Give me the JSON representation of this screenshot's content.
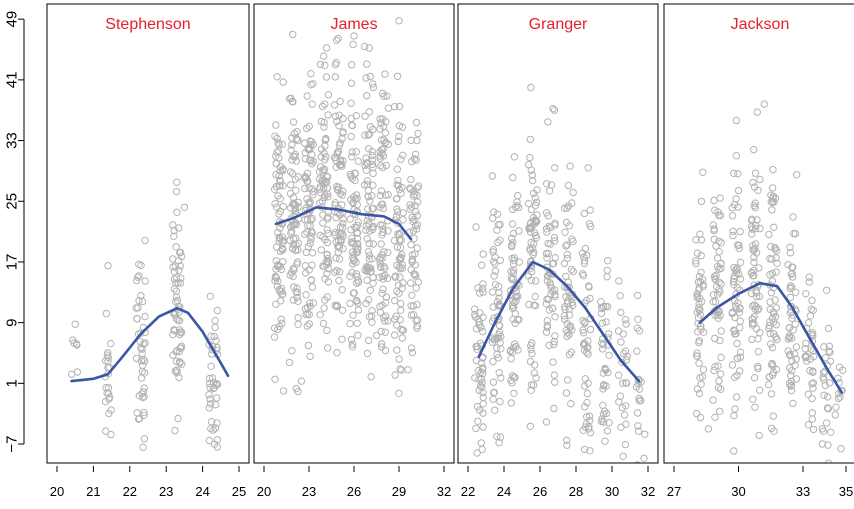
{
  "chart_data": {
    "type": "scatter",
    "y_ticks": [
      -7,
      1,
      9,
      17,
      25,
      33,
      41,
      49
    ],
    "ylim": [
      -9.5,
      51
    ],
    "colors": {
      "points": "#b3b3b3",
      "smooth": "#3a56a5",
      "title": "#e8202a",
      "frame": "#000000"
    },
    "panels": [
      {
        "title": "Stephenson",
        "xlim": [
          20,
          25
        ],
        "x_ticks": [
          20,
          21,
          22,
          23,
          24,
          25
        ],
        "x_tick_labels": [
          "20",
          "21",
          "22",
          "23",
          "24",
          "25"
        ],
        "clusters": [
          {
            "x": 20.5,
            "n": 6,
            "mean": 3,
            "spread": 3
          },
          {
            "x": 21.4,
            "n": 22,
            "mean": 1,
            "spread": 4
          },
          {
            "x": 22.3,
            "n": 45,
            "mean": 6,
            "spread": 6
          },
          {
            "x": 23.3,
            "n": 65,
            "mean": 11,
            "spread": 7
          },
          {
            "x": 24.3,
            "n": 40,
            "mean": 3,
            "spread": 4.5
          }
        ],
        "extra_points": [
          [
            20.5,
            8.8
          ],
          [
            21.4,
            16.5
          ],
          [
            22.4,
            -6.3
          ],
          [
            23.5,
            24.2
          ]
        ],
        "smooth": [
          [
            20.4,
            1.3
          ],
          [
            21.0,
            1.6
          ],
          [
            21.4,
            2.2
          ],
          [
            21.8,
            4.5
          ],
          [
            22.3,
            7.5
          ],
          [
            22.8,
            9.8
          ],
          [
            23.3,
            10.9
          ],
          [
            23.6,
            10.3
          ],
          [
            24.0,
            7.8
          ],
          [
            24.4,
            4.5
          ],
          [
            24.7,
            2.0
          ]
        ]
      },
      {
        "title": "James",
        "xlim": [
          20,
          32
        ],
        "x_ticks": [
          20,
          23,
          26,
          29,
          32
        ],
        "x_tick_labels": [
          "20",
          "23",
          "26",
          "29",
          "32"
        ],
        "clusters": [
          {
            "x": 21,
            "n": 80,
            "mean": 22,
            "spread": 9
          },
          {
            "x": 22,
            "n": 80,
            "mean": 23,
            "spread": 9
          },
          {
            "x": 23,
            "n": 80,
            "mean": 24,
            "spread": 9
          },
          {
            "x": 24,
            "n": 80,
            "mean": 24,
            "spread": 9
          },
          {
            "x": 25,
            "n": 80,
            "mean": 24,
            "spread": 9
          },
          {
            "x": 26,
            "n": 80,
            "mean": 23,
            "spread": 9
          },
          {
            "x": 27,
            "n": 80,
            "mean": 23,
            "spread": 9
          },
          {
            "x": 28,
            "n": 75,
            "mean": 23,
            "spread": 9
          },
          {
            "x": 29,
            "n": 70,
            "mean": 21,
            "spread": 9
          },
          {
            "x": 30,
            "n": 60,
            "mean": 20,
            "spread": 9
          }
        ],
        "extra_points": [
          [
            26.0,
            46.8
          ],
          [
            29.0,
            48.8
          ],
          [
            21.3,
            0.0
          ],
          [
            22.5,
            1.3
          ],
          [
            25.2,
            6.8
          ],
          [
            27.5,
            7.3
          ],
          [
            29.0,
            4.2
          ],
          [
            29.6,
            2.8
          ]
        ],
        "smooth": [
          [
            20.8,
            22.0
          ],
          [
            22.0,
            22.8
          ],
          [
            23.5,
            24.2
          ],
          [
            25.0,
            23.9
          ],
          [
            26.5,
            23.3
          ],
          [
            28.0,
            23.0
          ],
          [
            29.0,
            22.0
          ],
          [
            29.8,
            20.0
          ]
        ]
      },
      {
        "title": "Granger",
        "xlim": [
          22,
          32
        ],
        "x_ticks": [
          22,
          24,
          26,
          28,
          30,
          32
        ],
        "x_tick_labels": [
          "22",
          "24",
          "26",
          "28",
          "30",
          "32"
        ],
        "clusters": [
          {
            "x": 22.6,
            "n": 55,
            "mean": 6,
            "spread": 8
          },
          {
            "x": 23.6,
            "n": 60,
            "mean": 10,
            "spread": 8
          },
          {
            "x": 24.6,
            "n": 65,
            "mean": 14,
            "spread": 8
          },
          {
            "x": 25.6,
            "n": 65,
            "mean": 16.5,
            "spread": 8
          },
          {
            "x": 26.6,
            "n": 60,
            "mean": 15,
            "spread": 8
          },
          {
            "x": 27.6,
            "n": 55,
            "mean": 13,
            "spread": 8
          },
          {
            "x": 28.6,
            "n": 50,
            "mean": 10,
            "spread": 8
          },
          {
            "x": 29.6,
            "n": 40,
            "mean": 6,
            "spread": 7
          },
          {
            "x": 30.6,
            "n": 25,
            "mean": 3,
            "spread": 6
          },
          {
            "x": 31.6,
            "n": 20,
            "mean": 1,
            "spread": 6
          }
        ],
        "extra_points": [
          [
            26.8,
            37.0
          ],
          [
            23.6,
            -6.0
          ],
          [
            30.5,
            -4.8
          ],
          [
            28.8,
            -5.5
          ]
        ],
        "smooth": [
          [
            22.6,
            4.5
          ],
          [
            23.5,
            9.0
          ],
          [
            24.5,
            13.5
          ],
          [
            25.6,
            17.0
          ],
          [
            26.5,
            16.0
          ],
          [
            27.5,
            13.8
          ],
          [
            28.5,
            11.0
          ],
          [
            29.5,
            7.5
          ],
          [
            30.5,
            4.0
          ],
          [
            31.5,
            1.3
          ]
        ]
      },
      {
        "title": "Jackson",
        "xlim": [
          27,
          35
        ],
        "x_ticks": [
          27,
          30,
          33,
          35
        ],
        "x_tick_labels": [
          "27",
          "30",
          "33",
          "35"
        ],
        "clusters": [
          {
            "x": 28.2,
            "n": 50,
            "mean": 9,
            "spread": 8
          },
          {
            "x": 29.0,
            "n": 55,
            "mean": 11,
            "spread": 8
          },
          {
            "x": 29.9,
            "n": 60,
            "mean": 13,
            "spread": 8
          },
          {
            "x": 30.8,
            "n": 65,
            "mean": 14,
            "spread": 8
          },
          {
            "x": 31.6,
            "n": 60,
            "mean": 13,
            "spread": 8
          },
          {
            "x": 32.5,
            "n": 50,
            "mean": 9,
            "spread": 7
          },
          {
            "x": 33.3,
            "n": 35,
            "mean": 5,
            "spread": 6
          },
          {
            "x": 34.1,
            "n": 25,
            "mean": 2,
            "spread": 5
          },
          {
            "x": 34.7,
            "n": 12,
            "mean": 0,
            "spread": 3
          }
        ],
        "extra_points": [
          [
            31.2,
            37.8
          ],
          [
            29.9,
            31.0
          ],
          [
            32.7,
            28.5
          ],
          [
            28.6,
            -5.0
          ],
          [
            33.9,
            -5.0
          ]
        ],
        "smooth": [
          [
            28.2,
            9.0
          ],
          [
            29.0,
            11.0
          ],
          [
            30.0,
            12.8
          ],
          [
            31.0,
            14.2
          ],
          [
            31.8,
            13.8
          ],
          [
            32.5,
            11.0
          ],
          [
            33.3,
            7.0
          ],
          [
            34.1,
            3.0
          ],
          [
            34.8,
            -0.2
          ]
        ]
      }
    ]
  }
}
